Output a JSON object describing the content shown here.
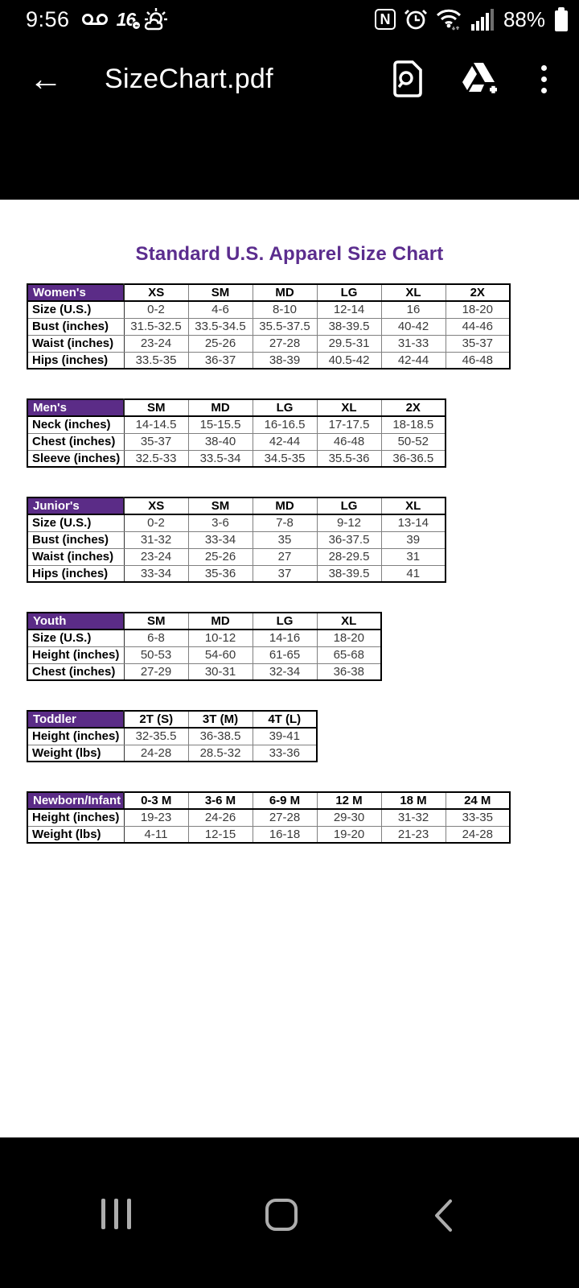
{
  "status_bar": {
    "time": "9:56",
    "battery_percent": "88%",
    "channel_logo": "16",
    "channel_logo_sub": "abc",
    "icons_left": [
      "voicemail-icon",
      "channel-16-icon",
      "weather-partly-sunny-icon"
    ],
    "icons_right": [
      "nfc-icon",
      "alarm-icon",
      "wifi-icon",
      "signal-strength-icon",
      "battery-icon"
    ]
  },
  "app_bar": {
    "title": "SizeChart.pdf",
    "icons": [
      "back-arrow",
      "find-in-page-icon",
      "drive-add-icon",
      "overflow-menu-icon"
    ]
  },
  "document": {
    "title": "Standard U.S. Apparel Size Chart",
    "tables": [
      {
        "id": "womens",
        "name": "Women's",
        "columns": [
          "XS",
          "SM",
          "MD",
          "LG",
          "XL",
          "2X"
        ],
        "rows": [
          {
            "label": "Size (U.S.)",
            "values": [
              "0-2",
              "4-6",
              "8-10",
              "12-14",
              "16",
              "18-20"
            ]
          },
          {
            "label": "Bust (inches)",
            "values": [
              "31.5-32.5",
              "33.5-34.5",
              "35.5-37.5",
              "38-39.5",
              "40-42",
              "44-46"
            ]
          },
          {
            "label": "Waist (inches)",
            "values": [
              "23-24",
              "25-26",
              "27-28",
              "29.5-31",
              "31-33",
              "35-37"
            ]
          },
          {
            "label": "Hips (inches)",
            "values": [
              "33.5-35",
              "36-37",
              "38-39",
              "40.5-42",
              "42-44",
              "46-48"
            ]
          }
        ]
      },
      {
        "id": "mens",
        "name": "Men's",
        "columns": [
          "SM",
          "MD",
          "LG",
          "XL",
          "2X"
        ],
        "rows": [
          {
            "label": "Neck (inches)",
            "values": [
              "14-14.5",
              "15-15.5",
              "16-16.5",
              "17-17.5",
              "18-18.5"
            ]
          },
          {
            "label": "Chest (inches)",
            "values": [
              "35-37",
              "38-40",
              "42-44",
              "46-48",
              "50-52"
            ]
          },
          {
            "label": "Sleeve (inches)",
            "values": [
              "32.5-33",
              "33.5-34",
              "34.5-35",
              "35.5-36",
              "36-36.5"
            ]
          }
        ]
      },
      {
        "id": "juniors",
        "name": "Junior's",
        "columns": [
          "XS",
          "SM",
          "MD",
          "LG",
          "XL"
        ],
        "rows": [
          {
            "label": "Size (U.S.)",
            "values": [
              "0-2",
              "3-6",
              "7-8",
              "9-12",
              "13-14"
            ]
          },
          {
            "label": "Bust (inches)",
            "values": [
              "31-32",
              "33-34",
              "35",
              "36-37.5",
              "39"
            ]
          },
          {
            "label": "Waist (inches)",
            "values": [
              "23-24",
              "25-26",
              "27",
              "28-29.5",
              "31"
            ]
          },
          {
            "label": "Hips (inches)",
            "values": [
              "33-34",
              "35-36",
              "37",
              "38-39.5",
              "41"
            ]
          }
        ]
      },
      {
        "id": "youth",
        "name": "Youth",
        "columns": [
          "SM",
          "MD",
          "LG",
          "XL"
        ],
        "rows": [
          {
            "label": "Size (U.S.)",
            "values": [
              "6-8",
              "10-12",
              "14-16",
              "18-20"
            ]
          },
          {
            "label": "Height (inches)",
            "values": [
              "50-53",
              "54-60",
              "61-65",
              "65-68"
            ]
          },
          {
            "label": "Chest (inches)",
            "values": [
              "27-29",
              "30-31",
              "32-34",
              "36-38"
            ]
          }
        ]
      },
      {
        "id": "toddler",
        "name": "Toddler",
        "columns": [
          "2T (S)",
          "3T (M)",
          "4T (L)"
        ],
        "rows": [
          {
            "label": "Height (inches)",
            "values": [
              "32-35.5",
              "36-38.5",
              "39-41"
            ]
          },
          {
            "label": "Weight (lbs)",
            "values": [
              "24-28",
              "28.5-32",
              "33-36"
            ]
          }
        ]
      },
      {
        "id": "newborn",
        "name": "Newborn/Infant",
        "columns": [
          "0-3 M",
          "3-6 M",
          "6-9 M",
          "12 M",
          "18 M",
          "24 M"
        ],
        "rows": [
          {
            "label": "Height (inches)",
            "values": [
              "19-23",
              "24-26",
              "27-28",
              "29-30",
              "31-32",
              "33-35"
            ]
          },
          {
            "label": "Weight (lbs)",
            "values": [
              "4-11",
              "12-15",
              "16-18",
              "19-20",
              "21-23",
              "24-28"
            ]
          }
        ]
      }
    ]
  },
  "nav_bar": {
    "buttons": [
      "recents",
      "home",
      "back"
    ]
  },
  "colors": {
    "accent_purple": "#5b2c87",
    "title_purple": "#5b2d8e",
    "bar_background": "#000000",
    "page_background": "#ffffff",
    "nav_icon_gray": "#adadad"
  }
}
